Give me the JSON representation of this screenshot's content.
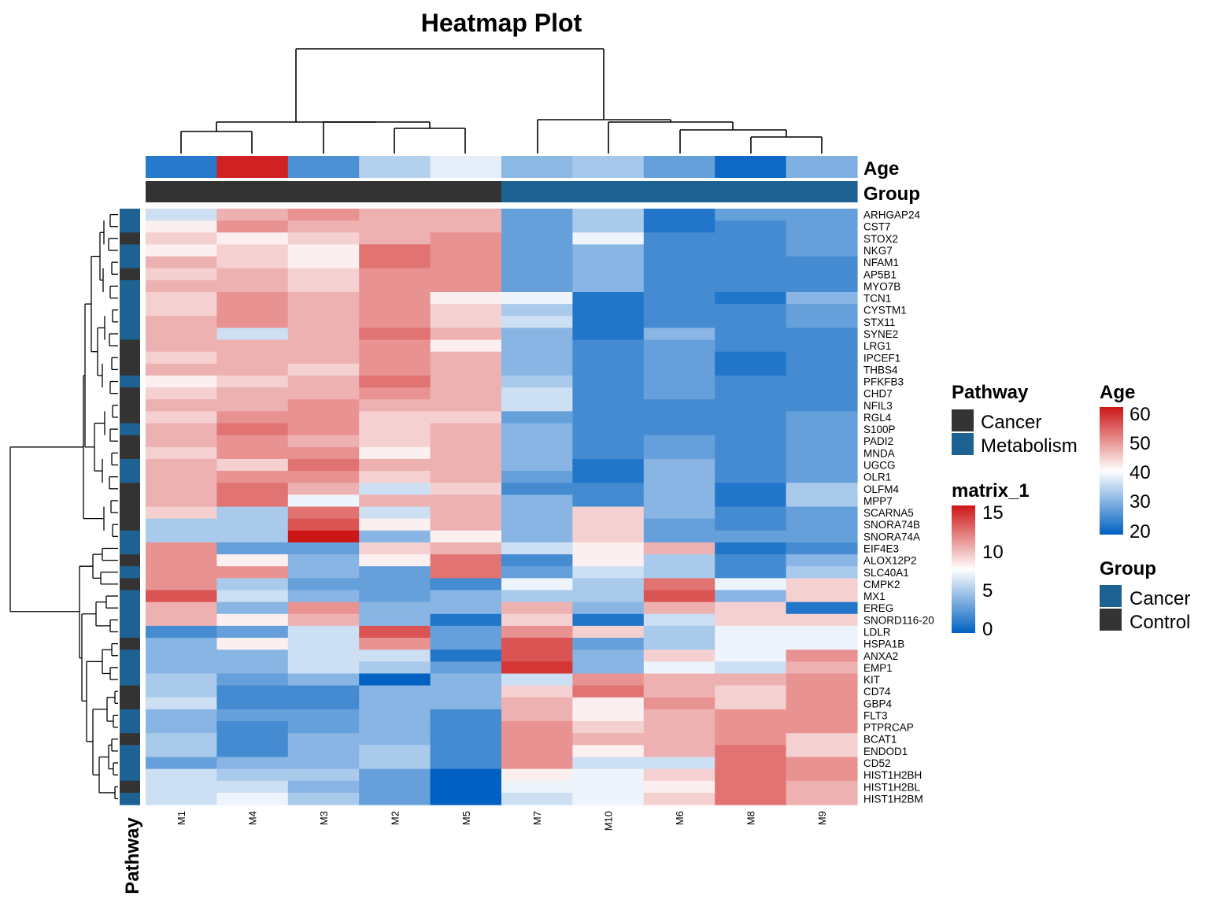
{
  "chart_data": {
    "type": "heatmap",
    "title": "Heatmap Plot",
    "columns": [
      "M1",
      "M4",
      "M3",
      "M2",
      "M5",
      "M7",
      "M10",
      "M6",
      "M8",
      "M9"
    ],
    "rows": [
      "ARHGAP24",
      "CST7",
      "STOX2",
      "NKG7",
      "NFAM1",
      "AP5B1",
      "MYO7B",
      "TCN1",
      "CYSTM1",
      "STX11",
      "SYNE2",
      "LRG1",
      "IPCEF1",
      "THBS4",
      "PFKFB3",
      "CHD7",
      "NFIL3",
      "RGL4",
      "S100P",
      "PADI2",
      "MNDA",
      "UGCG",
      "OLR1",
      "OLFM4",
      "MPP7",
      "SCARNA5",
      "SNORA74B",
      "SNORA74A",
      "EIF4E3",
      "ALOX12P2",
      "SLC40A1",
      "CMPK2",
      "MX1",
      "EREG",
      "SNORD116-20",
      "LDLR",
      "HSPA1B",
      "ANXA2",
      "EMP1",
      "KIT",
      "CD74",
      "GBP4",
      "FLT3",
      "PTPRCAP",
      "BCAT1",
      "ENDOD1",
      "CD52",
      "HIST1H2BH",
      "HIST1H2BL",
      "HIST1H2BM"
    ],
    "values": [
      [
        6,
        10,
        11,
        10,
        10,
        3,
        5,
        1,
        3,
        3
      ],
      [
        8,
        11,
        10,
        10,
        10,
        3,
        5,
        1,
        2,
        3
      ],
      [
        9,
        8,
        9,
        10,
        11,
        3,
        7,
        2,
        2,
        3
      ],
      [
        8,
        9,
        8,
        12,
        11,
        3,
        4,
        2,
        2,
        3
      ],
      [
        10,
        9,
        8,
        12,
        11,
        3,
        4,
        2,
        2,
        2
      ],
      [
        9,
        10,
        9,
        11,
        11,
        3,
        4,
        2,
        2,
        2
      ],
      [
        10,
        10,
        9,
        11,
        11,
        3,
        4,
        2,
        2,
        2
      ],
      [
        9,
        11,
        10,
        11,
        8,
        7,
        1,
        2,
        1,
        4
      ],
      [
        9,
        11,
        10,
        11,
        9,
        5,
        1,
        2,
        2,
        3
      ],
      [
        10,
        11,
        10,
        11,
        9,
        6,
        1,
        2,
        2,
        3
      ],
      [
        10,
        6,
        10,
        12,
        10,
        4,
        1,
        4,
        2,
        2
      ],
      [
        10,
        10,
        10,
        11,
        8,
        4,
        2,
        3,
        2,
        2
      ],
      [
        9,
        10,
        10,
        11,
        10,
        4,
        2,
        3,
        1,
        2
      ],
      [
        10,
        10,
        9,
        11,
        10,
        4,
        2,
        3,
        1,
        2
      ],
      [
        8,
        9,
        10,
        12,
        10,
        5,
        2,
        3,
        2,
        2
      ],
      [
        9,
        10,
        10,
        11,
        10,
        6,
        2,
        3,
        2,
        2
      ],
      [
        10,
        10,
        11,
        10,
        10,
        6,
        2,
        2,
        2,
        2
      ],
      [
        9,
        11,
        11,
        9,
        9,
        3,
        2,
        2,
        2,
        3
      ],
      [
        10,
        12,
        11,
        9,
        10,
        4,
        2,
        2,
        2,
        3
      ],
      [
        10,
        11,
        10,
        9,
        10,
        4,
        2,
        3,
        2,
        3
      ],
      [
        9,
        11,
        11,
        8,
        10,
        4,
        2,
        3,
        2,
        3
      ],
      [
        10,
        9,
        12,
        10,
        10,
        4,
        1,
        4,
        2,
        3
      ],
      [
        10,
        11,
        11,
        9,
        10,
        3,
        1,
        4,
        2,
        3
      ],
      [
        10,
        12,
        10,
        6,
        9,
        2,
        2,
        4,
        1,
        5
      ],
      [
        10,
        12,
        7,
        10,
        10,
        4,
        2,
        4,
        1,
        5
      ],
      [
        9,
        5,
        12,
        6,
        10,
        4,
        9,
        4,
        2,
        3
      ],
      [
        5,
        5,
        13,
        8,
        10,
        4,
        9,
        3,
        2,
        3
      ],
      [
        5,
        5,
        15,
        4,
        8,
        4,
        9,
        3,
        3,
        3
      ],
      [
        11,
        3,
        3,
        9,
        10,
        6,
        8,
        10,
        1,
        2
      ],
      [
        11,
        8,
        4,
        8,
        12,
        2,
        8,
        5,
        2,
        4
      ],
      [
        11,
        11,
        4,
        3,
        12,
        3,
        6,
        5,
        2,
        5
      ],
      [
        11,
        5,
        3,
        3,
        2,
        7,
        5,
        12,
        7,
        9
      ],
      [
        13,
        6,
        4,
        3,
        4,
        5,
        5,
        13,
        4,
        9
      ],
      [
        10,
        4,
        11,
        4,
        4,
        10,
        4,
        10,
        9,
        1
      ],
      [
        10,
        8,
        10,
        4,
        1,
        9,
        1,
        6,
        9,
        9
      ],
      [
        2,
        3,
        6,
        13,
        3,
        11,
        9,
        5,
        7,
        7
      ],
      [
        4,
        8,
        6,
        11,
        3,
        13,
        3,
        5,
        7,
        7
      ],
      [
        4,
        4,
        6,
        6,
        1,
        13,
        4,
        9,
        7,
        11
      ],
      [
        4,
        4,
        6,
        5,
        3,
        14,
        4,
        7,
        6,
        10
      ],
      [
        5,
        3,
        4,
        0,
        4,
        6,
        11,
        10,
        10,
        11
      ],
      [
        5,
        2,
        2,
        4,
        4,
        9,
        12,
        10,
        9,
        11
      ],
      [
        6,
        2,
        2,
        4,
        4,
        10,
        8,
        11,
        9,
        11
      ],
      [
        4,
        3,
        3,
        4,
        2,
        10,
        8,
        10,
        11,
        11
      ],
      [
        4,
        2,
        3,
        4,
        2,
        11,
        9,
        10,
        11,
        11
      ],
      [
        5,
        2,
        4,
        4,
        2,
        11,
        10,
        10,
        11,
        9
      ],
      [
        5,
        2,
        4,
        5,
        2,
        11,
        8,
        10,
        12,
        9
      ],
      [
        3,
        4,
        4,
        5,
        2,
        11,
        6,
        6,
        12,
        11
      ],
      [
        6,
        5,
        5,
        3,
        0,
        8,
        7,
        9,
        12,
        11
      ],
      [
        6,
        6,
        4,
        3,
        0,
        7,
        7,
        8,
        12,
        10
      ],
      [
        6,
        7,
        5,
        3,
        0,
        6,
        7,
        9,
        12,
        10
      ]
    ],
    "color_scale": {
      "name": "matrix_1",
      "min": 0,
      "mid": 7.5,
      "max": 15,
      "low": "#0061c2",
      "mid_color": "#ffffff",
      "high": "#cd1616",
      "ticks": [
        0,
        5,
        10,
        15
      ]
    },
    "annotations": {
      "age": {
        "label": "Age",
        "values": [
          23,
          59,
          26,
          34,
          38,
          31,
          33,
          28,
          21,
          30
        ],
        "scale": {
          "min": 20,
          "mid": 40,
          "max": 60,
          "low": "#0061c2",
          "mid_color": "#ffffff",
          "high": "#cd1616",
          "ticks": [
            20,
            30,
            40,
            50,
            60
          ]
        }
      },
      "group": {
        "label": "Group",
        "values": [
          "Control",
          "Control",
          "Control",
          "Control",
          "Control",
          "Cancer",
          "Cancer",
          "Cancer",
          "Cancer",
          "Cancer"
        ],
        "levels": [
          {
            "name": "Cancer",
            "color": "#1d6293"
          },
          {
            "name": "Control",
            "color": "#333333"
          }
        ]
      },
      "pathway": {
        "label": "Pathway",
        "values": [
          "Metabolism",
          "Metabolism",
          "Cancer",
          "Metabolism",
          "Metabolism",
          "Cancer",
          "Metabolism",
          "Metabolism",
          "Metabolism",
          "Metabolism",
          "Metabolism",
          "Cancer",
          "Cancer",
          "Cancer",
          "Metabolism",
          "Cancer",
          "Cancer",
          "Cancer",
          "Metabolism",
          "Cancer",
          "Cancer",
          "Metabolism",
          "Metabolism",
          "Cancer",
          "Cancer",
          "Cancer",
          "Cancer",
          "Metabolism",
          "Metabolism",
          "Cancer",
          "Metabolism",
          "Cancer",
          "Metabolism",
          "Metabolism",
          "Metabolism",
          "Metabolism",
          "Cancer",
          "Metabolism",
          "Metabolism",
          "Metabolism",
          "Cancer",
          "Cancer",
          "Metabolism",
          "Metabolism",
          "Cancer",
          "Metabolism",
          "Metabolism",
          "Metabolism",
          "Cancer",
          "Metabolism"
        ],
        "levels": [
          {
            "name": "Cancer",
            "color": "#333333"
          },
          {
            "name": "Metabolism",
            "color": "#1d6293"
          }
        ]
      }
    },
    "legend_placement": "right",
    "grid": false
  },
  "legends": {
    "pathway": {
      "title": "Pathway",
      "items": [
        "Cancer",
        "Metabolism"
      ]
    },
    "matrix": {
      "title": "matrix_1",
      "ticks": [
        "15",
        "10",
        "5",
        "0"
      ]
    },
    "age": {
      "title": "Age",
      "ticks": [
        "60",
        "50",
        "40",
        "30",
        "20"
      ]
    },
    "group": {
      "title": "Group",
      "items": [
        "Cancer",
        "Control"
      ]
    }
  }
}
